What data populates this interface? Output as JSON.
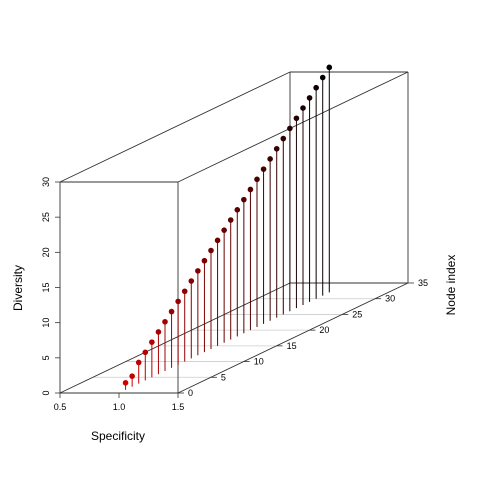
{
  "chart_data": {
    "type": "scatter",
    "subtype": "3d-scatter-with-drop-lines",
    "title": "",
    "xlabel": "Specificity",
    "ylabel": "Node index",
    "zlabel": "Diversity",
    "xlim": [
      0.5,
      1.5
    ],
    "ylim": [
      0,
      35
    ],
    "zlim": [
      0,
      30
    ],
    "x_ticks": [
      "0.5",
      "1.0",
      "1.5"
    ],
    "y_ticks": [
      "0",
      "5",
      "10",
      "15",
      "20",
      "25",
      "30",
      "35"
    ],
    "z_ticks": [
      "0",
      "5",
      "10",
      "15",
      "20",
      "25",
      "30"
    ],
    "box": true,
    "grid": "horizontal lines on the base plane",
    "point_color_gradient": [
      "#cc0000",
      "#000000"
    ],
    "points": {
      "x": [
        1.0,
        1.0,
        1.0,
        1.0,
        1.0,
        1.0,
        1.0,
        1.0,
        1.0,
        1.0,
        1.0,
        1.0,
        1.0,
        1.0,
        1.0,
        1.0,
        1.0,
        1.0,
        1.0,
        1.0,
        1.0,
        1.0,
        1.0,
        1.0,
        1.0,
        1.0,
        1.0,
        1.0,
        1.0,
        1.0,
        1.0,
        1.0
      ],
      "y": [
        1,
        2,
        3,
        4,
        5,
        6,
        7,
        8,
        9,
        10,
        11,
        12,
        13,
        14,
        15,
        16,
        17,
        18,
        19,
        20,
        21,
        22,
        23,
        24,
        25,
        26,
        27,
        28,
        29,
        30,
        31,
        32
      ],
      "z": [
        1,
        1.5,
        3,
        4,
        5,
        6,
        7,
        8,
        9,
        10,
        11,
        12,
        13,
        14,
        15,
        16,
        17,
        18,
        19,
        20,
        21,
        22,
        23,
        24,
        25,
        26,
        27,
        28,
        29,
        30,
        31,
        32
      ]
    }
  }
}
